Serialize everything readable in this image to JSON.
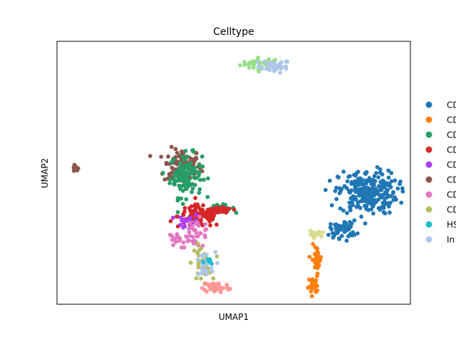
{
  "chart_data": {
    "type": "scatter",
    "title": "Celltype",
    "xlabel": "UMAP1",
    "ylabel": "UMAP2",
    "grid": false,
    "legend_position": "right (outside axes, clipped)",
    "ticks": "none",
    "legend": [
      {
        "label": "CD",
        "color": "#1f77b4"
      },
      {
        "label": "CD",
        "color": "#ff7f0e"
      },
      {
        "label": "CD",
        "color": "#279e68"
      },
      {
        "label": "CD",
        "color": "#d62728"
      },
      {
        "label": "CD",
        "color": "#aa40fc"
      },
      {
        "label": "CD",
        "color": "#8c564b"
      },
      {
        "label": "CD",
        "color": "#e377c2"
      },
      {
        "label": "CD",
        "color": "#b5bd61"
      },
      {
        "label": "HS",
        "color": "#17becf"
      },
      {
        "label": "In",
        "color": "#aec7e8"
      }
    ],
    "extra_colors": {
      "light_green": "#98df8a",
      "salmon": "#ff9896",
      "khaki": "#dbdb8d"
    },
    "xlim": [
      0,
      100
    ],
    "ylim": [
      0,
      100
    ],
    "clusters": [
      {
        "color": "#98df8a",
        "cx": 58.0,
        "cy": 91.5,
        "sx": 4.0,
        "sy": 1.5,
        "n": 35
      },
      {
        "color": "#aec7e8",
        "cx": 61.5,
        "cy": 90.5,
        "sx": 3.0,
        "sy": 1.6,
        "n": 30
      },
      {
        "color": "#8c564b",
        "cx": 5.2,
        "cy": 51.5,
        "sx": 0.6,
        "sy": 0.8,
        "n": 8
      },
      {
        "color": "#8c564b",
        "cx": 35.5,
        "cy": 52.5,
        "sx": 3.5,
        "sy": 4.5,
        "n": 110
      },
      {
        "color": "#279e68",
        "cx": 36.5,
        "cy": 49.0,
        "sx": 3.0,
        "sy": 5.5,
        "n": 110
      },
      {
        "color": "#279e68",
        "cx": 46.5,
        "cy": 36.5,
        "sx": 2.5,
        "sy": 0.9,
        "n": 25
      },
      {
        "color": "#d62728",
        "cx": 40.5,
        "cy": 33.5,
        "sx": 4.2,
        "sy": 2.8,
        "n": 110
      },
      {
        "color": "#d62728",
        "cx": 46.5,
        "cy": 35.5,
        "sx": 2.0,
        "sy": 0.8,
        "n": 25
      },
      {
        "color": "#aa40fc",
        "cx": 37.5,
        "cy": 31.5,
        "sx": 2.2,
        "sy": 1.8,
        "n": 20
      },
      {
        "color": "#e377c2",
        "cx": 39.0,
        "cy": 27.0,
        "sx": 3.0,
        "sy": 3.5,
        "n": 45
      },
      {
        "color": "#e377c2",
        "cx": 33.5,
        "cy": 25.5,
        "sx": 1.5,
        "sy": 1.0,
        "n": 10
      },
      {
        "color": "#b5bd61",
        "cx": 41.0,
        "cy": 15.5,
        "sx": 1.8,
        "sy": 4.5,
        "n": 35
      },
      {
        "color": "#aec7e8",
        "cx": 41.5,
        "cy": 14.5,
        "sx": 2.2,
        "sy": 3.5,
        "n": 25
      },
      {
        "color": "#17becf",
        "cx": 43.0,
        "cy": 16.0,
        "sx": 1.0,
        "sy": 1.5,
        "n": 6
      },
      {
        "color": "#ff9896",
        "cx": 45.0,
        "cy": 6.5,
        "sx": 2.5,
        "sy": 1.4,
        "n": 55
      },
      {
        "color": "#1f77b4",
        "cx": 88.0,
        "cy": 42.5,
        "sx": 5.5,
        "sy": 5.5,
        "n": 260
      },
      {
        "color": "#1f77b4",
        "cx": 81.0,
        "cy": 28.5,
        "sx": 2.5,
        "sy": 2.2,
        "n": 50
      },
      {
        "color": "#dbdb8d",
        "cx": 72.5,
        "cy": 26.5,
        "sx": 1.4,
        "sy": 0.9,
        "n": 22
      },
      {
        "color": "#ff7f0e",
        "cx": 73.5,
        "cy": 17.0,
        "sx": 0.9,
        "sy": 3.5,
        "n": 40
      },
      {
        "color": "#ff7f0e",
        "cx": 72.5,
        "cy": 7.0,
        "sx": 0.9,
        "sy": 2.0,
        "n": 25
      }
    ]
  }
}
